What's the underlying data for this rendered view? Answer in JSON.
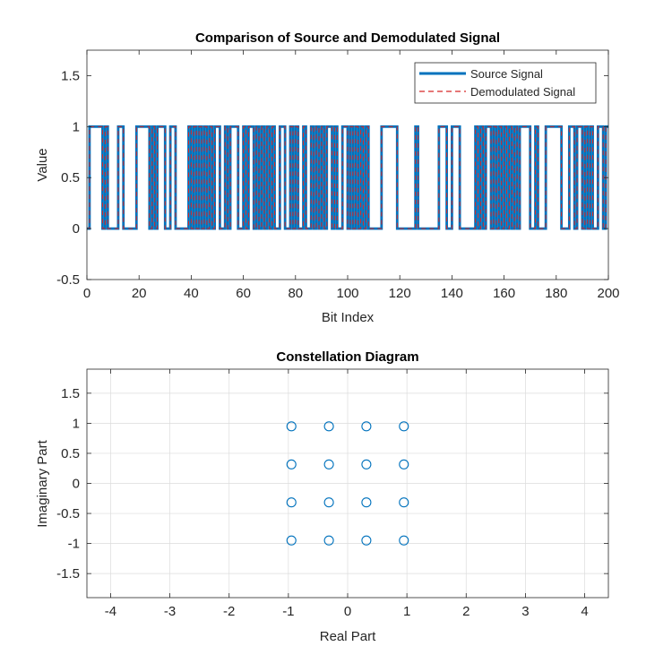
{
  "chart_data": [
    {
      "type": "line",
      "title": "Comparison of Source and Demodulated Signal",
      "xlabel": "Bit Index",
      "ylabel": "Value",
      "xlim": [
        0,
        200
      ],
      "ylim": [
        -0.5,
        1.75
      ],
      "xticks": [
        "0",
        "20",
        "40",
        "60",
        "80",
        "100",
        "120",
        "140",
        "160",
        "180",
        "200"
      ],
      "yticks": [
        "-0.5",
        "0",
        "0.5",
        "1",
        "1.5"
      ],
      "grid": false,
      "legend_position": "top-right",
      "series": [
        {
          "name": "Source Signal",
          "style": "solid",
          "color": "#0072BD"
        },
        {
          "name": "Demodulated Signal",
          "style": "dashed",
          "color": "#D62728"
        }
      ],
      "bits": [
        0,
        1,
        1,
        1,
        1,
        1,
        0,
        1,
        0,
        0,
        0,
        0,
        1,
        1,
        0,
        0,
        0,
        0,
        0,
        1,
        1,
        1,
        1,
        1,
        0,
        1,
        0,
        1,
        1,
        1,
        0,
        0,
        1,
        1,
        0,
        0,
        0,
        0,
        0,
        1,
        0,
        1,
        0,
        1,
        0,
        1,
        0,
        1,
        0,
        1,
        1,
        0,
        0,
        1,
        0,
        1,
        1,
        1,
        0,
        0,
        1,
        0,
        1,
        1,
        0,
        1,
        0,
        1,
        0,
        1,
        0,
        1,
        0,
        0,
        1,
        1,
        0,
        0,
        1,
        0,
        1,
        0,
        0,
        1,
        0,
        0,
        1,
        0,
        1,
        0,
        1,
        0,
        1,
        1,
        0,
        1,
        0,
        0,
        1,
        1,
        0,
        1,
        0,
        1,
        0,
        1,
        0,
        1,
        0,
        0,
        0,
        0,
        0,
        1,
        1,
        1,
        1,
        1,
        1,
        0,
        0,
        0,
        0,
        0,
        0,
        0,
        1,
        0,
        0,
        0,
        0,
        0,
        0,
        0,
        0,
        1,
        1,
        1,
        0,
        0,
        1,
        1,
        1,
        0,
        0,
        0,
        0,
        0,
        0,
        1,
        0,
        1,
        0,
        1,
        1,
        0,
        1,
        0,
        1,
        0,
        1,
        0,
        1,
        0,
        1,
        0,
        1,
        1,
        1,
        1,
        0,
        0,
        1,
        0,
        0,
        0,
        1,
        1,
        1,
        1,
        1,
        1,
        0,
        0,
        0,
        1,
        1,
        0,
        1,
        1,
        0,
        1,
        0,
        1,
        0,
        0,
        1,
        1,
        0,
        1
      ]
    },
    {
      "type": "scatter",
      "title": "Constellation Diagram",
      "xlabel": "Real Part",
      "ylabel": "Imaginary Part",
      "xlim": [
        -4.4,
        4.4
      ],
      "ylim": [
        -1.9,
        1.9
      ],
      "xticks": [
        "-4",
        "-3",
        "-2",
        "-1",
        "0",
        "1",
        "2",
        "3",
        "4"
      ],
      "yticks": [
        "-1.5",
        "-1",
        "-0.5",
        "0",
        "0.5",
        "1",
        "1.5"
      ],
      "grid": true,
      "marker": "circle",
      "color": "#0072BD",
      "points": [
        [
          -0.949,
          0.949
        ],
        [
          -0.316,
          0.949
        ],
        [
          0.316,
          0.949
        ],
        [
          0.949,
          0.949
        ],
        [
          -0.949,
          0.316
        ],
        [
          -0.316,
          0.316
        ],
        [
          0.316,
          0.316
        ],
        [
          0.949,
          0.316
        ],
        [
          -0.949,
          -0.316
        ],
        [
          -0.316,
          -0.316
        ],
        [
          0.316,
          -0.316
        ],
        [
          0.949,
          -0.316
        ],
        [
          -0.949,
          -0.949
        ],
        [
          -0.316,
          -0.949
        ],
        [
          0.316,
          -0.949
        ],
        [
          0.949,
          -0.949
        ]
      ]
    }
  ]
}
